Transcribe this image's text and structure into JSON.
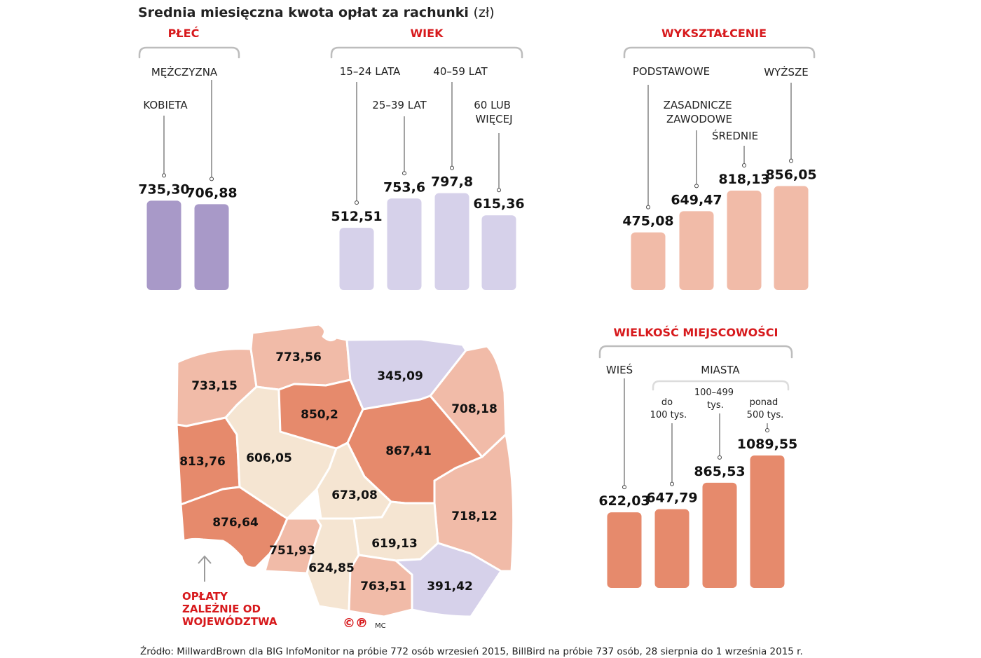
{
  "title": "Srednia miesięczna kwota opłat za rachunki",
  "title_unit": "(zł)",
  "colors": {
    "gender": "#a899c8",
    "age": "#d6d1ea",
    "education": "#f1bba8",
    "town": "#e68a6c",
    "section_red": "#d7191c",
    "brace_gray": "#bdbdbd"
  },
  "sections": {
    "gender": "PŁEĆ",
    "age": "WIEK",
    "education": "WYKSZTAŁCENIE",
    "town": "WIELKOŚĆ MIEJSCOWOŚCI"
  },
  "town_labels": {
    "village": "WIEŚ",
    "cities": "MIASTA"
  },
  "chart_data": [
    {
      "type": "bar",
      "section": "PŁEĆ",
      "categories": [
        "KOBIETA",
        "MĘŻCZYZNA"
      ],
      "values": [
        735.3,
        706.88
      ],
      "value_labels": [
        "735,30",
        "706,88"
      ]
    },
    {
      "type": "bar",
      "section": "WIEK",
      "categories": [
        "15–24 LATA",
        "25–39 LAT",
        "40–59 LAT",
        "60 LUB WIĘCEJ"
      ],
      "values": [
        512.51,
        753.6,
        797.8,
        615.36
      ],
      "value_labels": [
        "512,51",
        "753,6",
        "797,8",
        "615,36"
      ]
    },
    {
      "type": "bar",
      "section": "WYKSZTAŁCENIE",
      "categories": [
        "PODSTAWOWE",
        "ZASADNICZE ZAWODOWE",
        "ŚREDNIE",
        "WYŻSZE"
      ],
      "values": [
        475.08,
        649.47,
        818.13,
        856.05
      ],
      "value_labels": [
        "475,08",
        "649,47",
        "818,13",
        "856,05"
      ]
    },
    {
      "type": "bar",
      "section": "WIELKOŚĆ MIEJSCOWOŚCI",
      "categories": [
        "WIEŚ",
        "do 100 tys.",
        "100–499 tys.",
        "ponad 500 tys."
      ],
      "values": [
        622.03,
        647.79,
        865.53,
        1089.55
      ],
      "value_labels": [
        "622,03",
        "647,79",
        "865,53",
        "1089,55"
      ]
    },
    {
      "type": "choropleth",
      "values": [
        733.15,
        773.56,
        345.09,
        813.76,
        606.05,
        850.2,
        708.18,
        867.41,
        673.08,
        876.64,
        718.12,
        751.93,
        619.13,
        624.85,
        763.51,
        391.42
      ],
      "value_labels": [
        "733,15",
        "773,56",
        "345,09",
        "813,76",
        "606,05",
        "850,2",
        "708,18",
        "867,41",
        "673,08",
        "876,64",
        "718,12",
        "751,93",
        "619,13",
        "624,85",
        "763,51",
        "391,42"
      ]
    }
  ],
  "map_note": [
    "OPŁATY",
    "ZALEŻNIE OD",
    "WOJEWÓDZTWA"
  ],
  "credit_logo": "©℗",
  "credit_initials": "MC",
  "source": "Źródło: MillwardBrown dla BIG InfoMonitor na próbie 772 osób wrzesień 2015, BillBird na próbie 737 osób, 28 sierpnia do 1 września 2015 r."
}
